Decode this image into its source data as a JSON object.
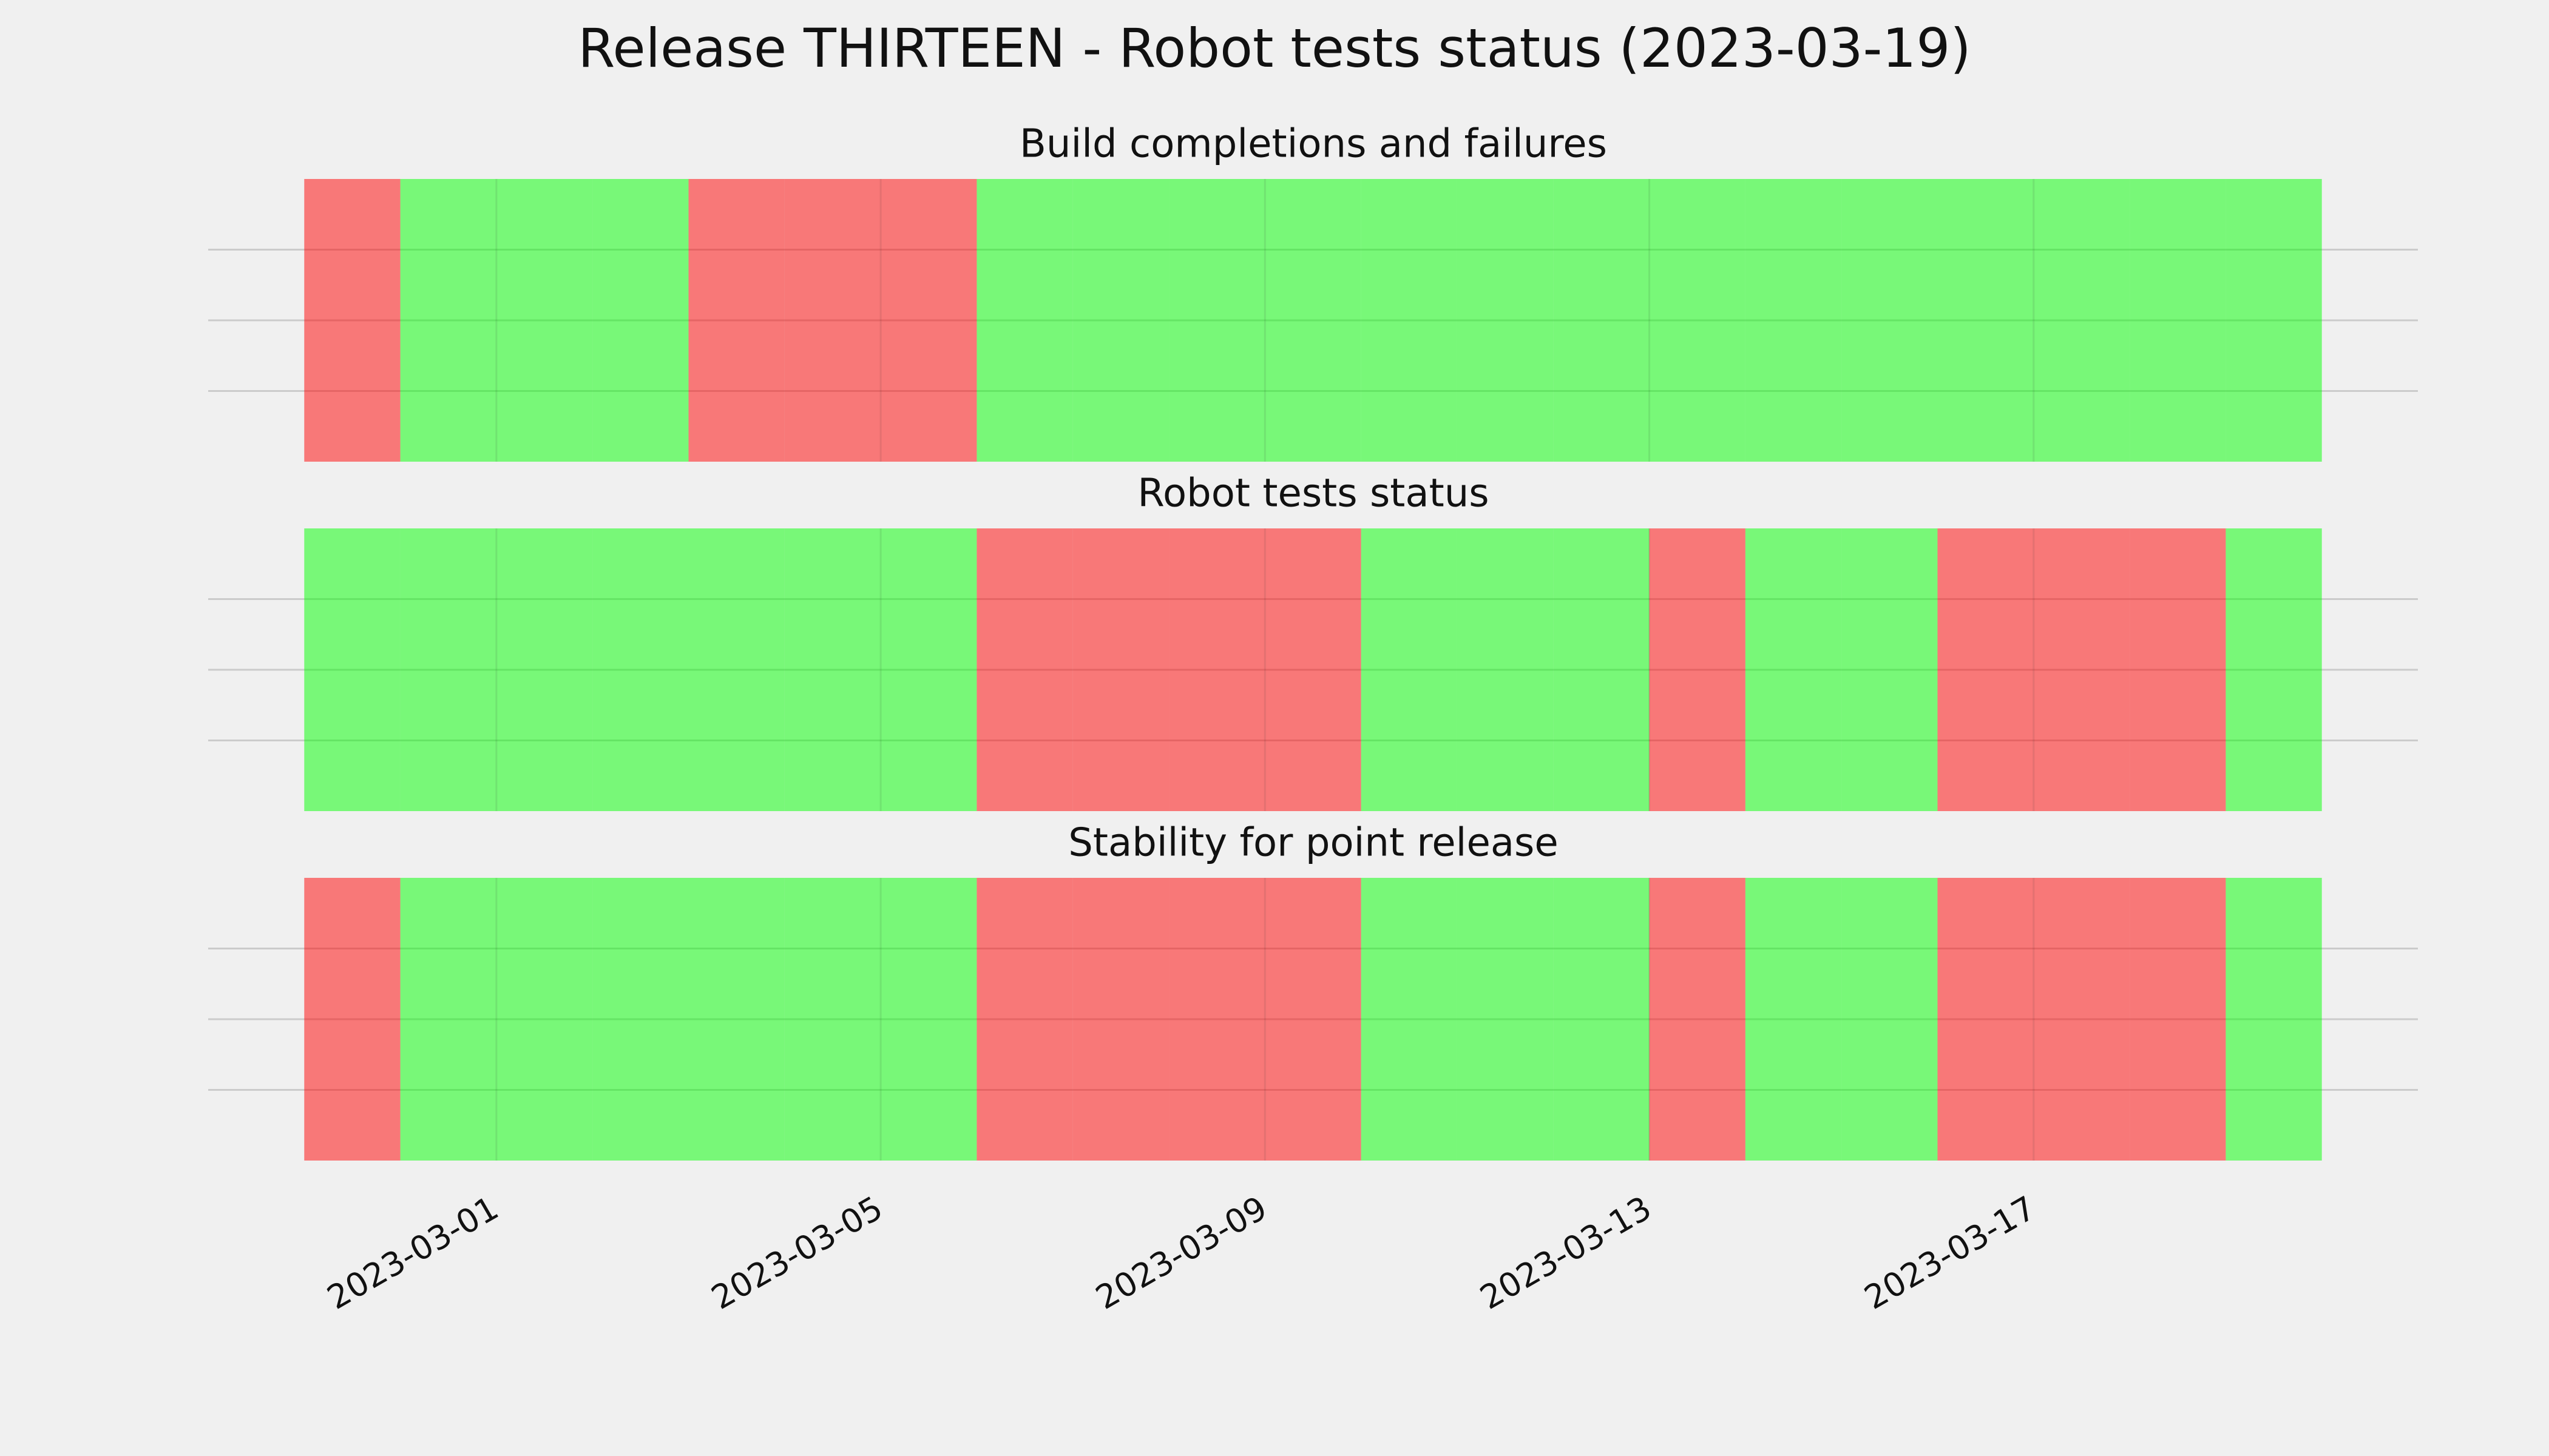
{
  "chart_data": {
    "type": "status_timeline",
    "title": "Release THIRTEEN - Robot tests status (2023-03-19)",
    "x": [
      "2023-02-27",
      "2023-02-28",
      "2023-03-01",
      "2023-03-02",
      "2023-03-03",
      "2023-03-04",
      "2023-03-05",
      "2023-03-06",
      "2023-03-07",
      "2023-03-08",
      "2023-03-09",
      "2023-03-10",
      "2023-03-11",
      "2023-03-12",
      "2023-03-13",
      "2023-03-14",
      "2023-03-15",
      "2023-03-16",
      "2023-03-17",
      "2023-03-18",
      "2023-03-19"
    ],
    "xlim": [
      "2023-02-26",
      "2023-03-21"
    ],
    "xticks": [
      "2023-03-01",
      "2023-03-05",
      "2023-03-09",
      "2023-03-13",
      "2023-03-17"
    ],
    "ylim": [
      0,
      1
    ],
    "yticks": [
      0.25,
      0.5,
      0.75
    ],
    "grid": true,
    "status_colors": [
      "#ff0000",
      "#00ff00"
    ],
    "alpha": 0.5,
    "series": [
      {
        "name": "Build completions and failures",
        "values": [
          0,
          1,
          1,
          1,
          0,
          0,
          0,
          1,
          1,
          1,
          1,
          1,
          1,
          1,
          1,
          1,
          1,
          1,
          1,
          1,
          1
        ]
      },
      {
        "name": "Robot tests status",
        "values": [
          1,
          1,
          1,
          1,
          1,
          1,
          1,
          0,
          0,
          0,
          0,
          1,
          1,
          1,
          0,
          1,
          1,
          0,
          0,
          0,
          1
        ]
      },
      {
        "name": "Stability for point release",
        "values": [
          0,
          1,
          1,
          1,
          1,
          1,
          1,
          0,
          0,
          0,
          0,
          1,
          1,
          1,
          0,
          1,
          1,
          0,
          0,
          0,
          1
        ]
      }
    ]
  }
}
